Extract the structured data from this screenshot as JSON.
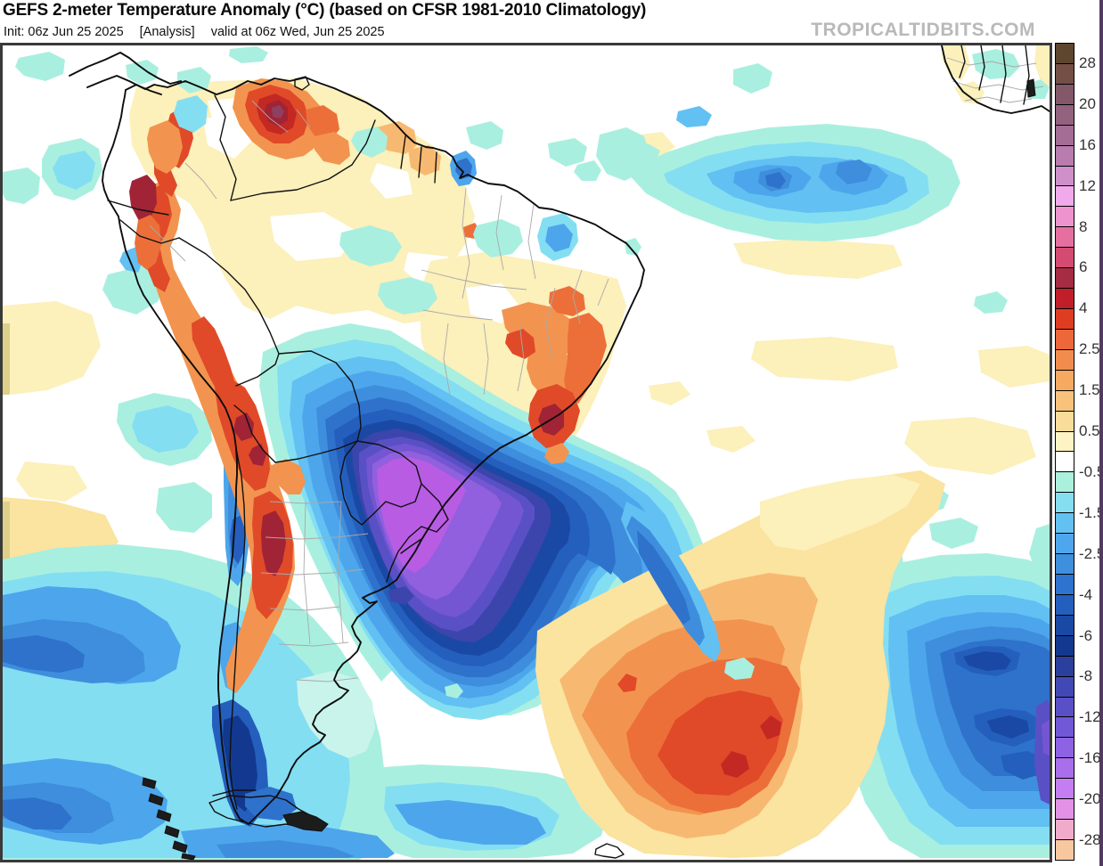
{
  "header": {
    "title": "GEFS 2-meter Temperature Anomaly (°C) (based on CFSR 1981-2010 Climatology)",
    "init_label": "Init: 06z Jun 25 2025",
    "analysis_label": "[Analysis]",
    "valid_label": "valid at 06z Wed, Jun 25 2025",
    "watermark": "TROPICALTIDBITS.COM"
  },
  "colorbar": {
    "unit": "°C",
    "bands": [
      "#5e452d",
      "#744f45",
      "#835868",
      "#93627e",
      "#a46d94",
      "#b87cae",
      "#cf8fc9",
      "#f0a9ea",
      "#ef93cf",
      "#e56f9f",
      "#d34b70",
      "#a52c42",
      "#c01e28",
      "#de3d22",
      "#ec683a",
      "#f28c4e",
      "#f6a960",
      "#f8c27c",
      "#fadc9a",
      "#fdf3c4",
      "#ffffff",
      "#aaf0dc",
      "#85def0",
      "#63c1f2",
      "#4ea7ec",
      "#3e8fdd",
      "#2e73cd",
      "#245fbd",
      "#1a49a5",
      "#12398f",
      "#2b3f9f",
      "#4349b4",
      "#5a50c6",
      "#7158d6",
      "#8d62e3",
      "#a96eea",
      "#c57ef2",
      "#e292e6",
      "#f0aaca",
      "#f7c8a0"
    ],
    "labels": [
      {
        "text": "28",
        "after_band": 1
      },
      {
        "text": "20",
        "after_band": 3
      },
      {
        "text": "16",
        "after_band": 5
      },
      {
        "text": "12",
        "after_band": 7
      },
      {
        "text": "8",
        "after_band": 9
      },
      {
        "text": "6",
        "after_band": 11
      },
      {
        "text": "4",
        "after_band": 13
      },
      {
        "text": "2.5",
        "after_band": 15
      },
      {
        "text": "1.5",
        "after_band": 17
      },
      {
        "text": "0.5",
        "after_band": 19
      },
      {
        "text": "-0.5",
        "after_band": 21
      },
      {
        "text": "-1.5",
        "after_band": 23
      },
      {
        "text": "-2.5",
        "after_band": 25
      },
      {
        "text": "-4",
        "after_band": 27
      },
      {
        "text": "-6",
        "after_band": 29
      },
      {
        "text": "-8",
        "after_band": 31
      },
      {
        "text": "-12",
        "after_band": 33
      },
      {
        "text": "-16",
        "after_band": 35
      },
      {
        "text": "-20",
        "after_band": 37
      },
      {
        "text": "-28",
        "after_band": 39
      }
    ]
  },
  "map": {
    "model": "GEFS",
    "field": "2-meter temperature anomaly",
    "region": "South America",
    "features": [
      {
        "name": "extreme-cold-core",
        "color": "#b95ce4",
        "note": "-12 to -16C anomaly over Paraguay, Uruguay, S Brazil, NE Argentina"
      },
      {
        "name": "cold-ring",
        "color": "#1a49a5",
        "note": "-4 to -8C ring over central Brazil, Argentina and SW Atlantic"
      },
      {
        "name": "andes-warm-band",
        "color": "#e04a28",
        "note": "+4 to +6C anomalies along Andes from Colombia to NW Argentina"
      },
      {
        "name": "north-warm-blob",
        "color": "#a02435",
        "note": "+6 to +8C core over S Venezuela / N Brazil border"
      },
      {
        "name": "ne-brazil-warm",
        "color": "#e04a28",
        "note": "warm anomalies over NE and E Brazil coast"
      },
      {
        "name": "n-atlantic-cold-blob",
        "color": "#3e8edd",
        "note": "-2 to -4C pool in tropical N Atlantic"
      },
      {
        "name": "s-atlantic-warm-blob",
        "color": "#e04a28",
        "note": "+3 to +5C pool in S Atlantic east of Argentina"
      },
      {
        "name": "se-cold-blob",
        "color": "#12398f",
        "note": "-6 to -10C pool in far SE Atlantic corner"
      },
      {
        "name": "patagonia-pacific-cold",
        "color": "#4da6ec",
        "note": "-1 to -4C over Patagonia and SE Pacific"
      },
      {
        "name": "w-africa-corner",
        "color": "#fcf0bb",
        "note": "weak anomalies over W Africa, top right corner"
      }
    ]
  }
}
